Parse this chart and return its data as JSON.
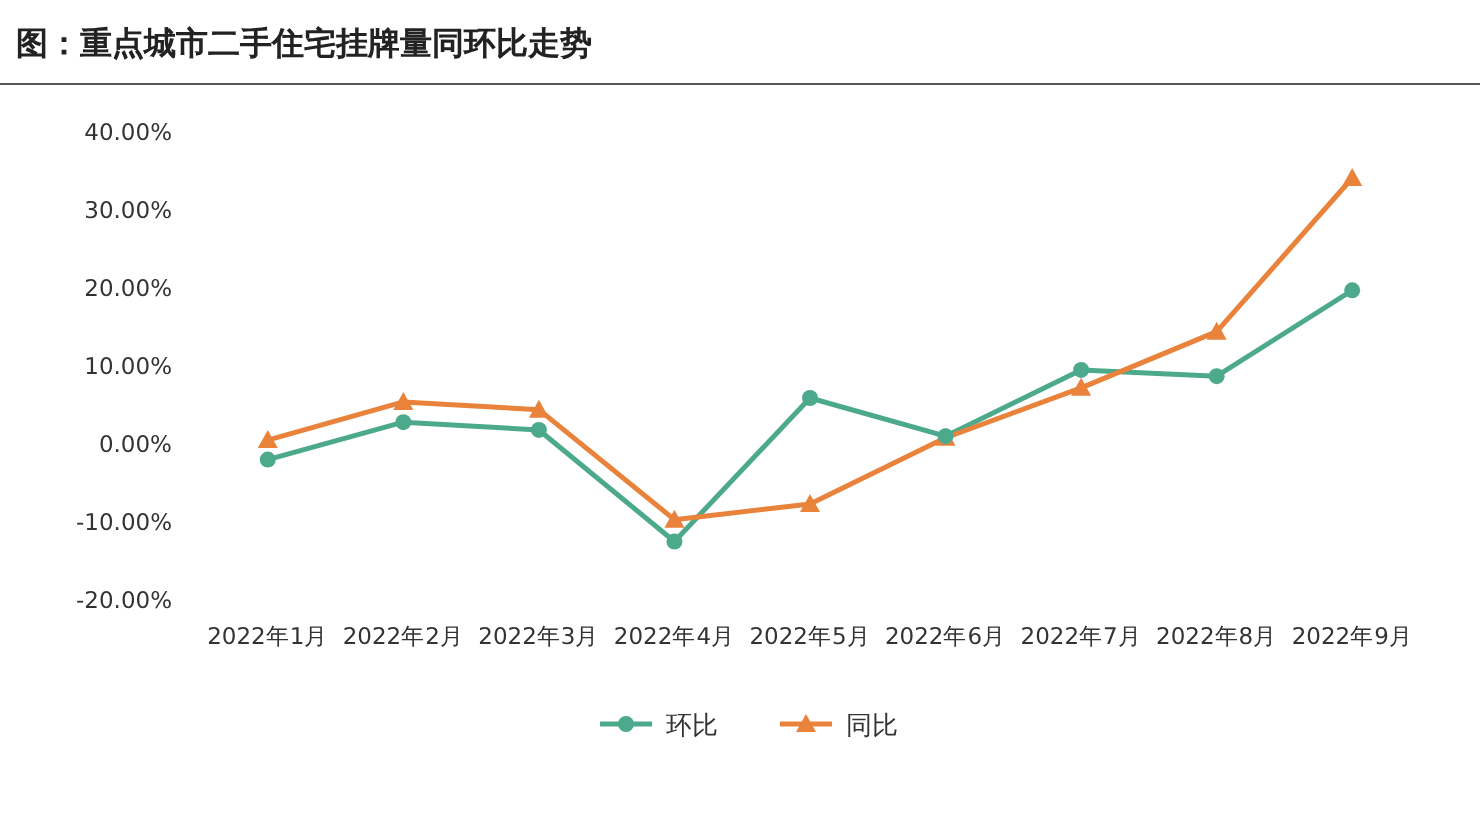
{
  "chart_data": {
    "type": "line",
    "title": "图：重点城市二手住宅挂牌量同环比走势",
    "categories": [
      "2022年1月",
      "2022年2月",
      "2022年3月",
      "2022年4月",
      "2022年5月",
      "2022年6月",
      "2022年7月",
      "2022年8月",
      "2022年9月"
    ],
    "series": [
      {
        "name": "环比",
        "color": "#4ca98c",
        "marker": "circle",
        "values": [
          -2.0,
          2.8,
          1.8,
          -12.5,
          5.9,
          1.0,
          9.5,
          8.7,
          19.7
        ]
      },
      {
        "name": "同比",
        "color": "#e9823a",
        "marker": "triangle",
        "values": [
          0.5,
          5.4,
          4.4,
          -9.7,
          -7.7,
          0.8,
          7.2,
          14.4,
          34.1
        ]
      }
    ],
    "ylim": [
      -20,
      40
    ],
    "yticks": [
      {
        "value": -20,
        "label": "-20.00%"
      },
      {
        "value": -10,
        "label": "-10.00%"
      },
      {
        "value": 0,
        "label": "0.00%"
      },
      {
        "value": 10,
        "label": "10.00%"
      },
      {
        "value": 20,
        "label": "20.00%"
      },
      {
        "value": 30,
        "label": "30.00%"
      },
      {
        "value": 40,
        "label": "40.00%"
      }
    ],
    "grid": false,
    "legend": "bottom"
  }
}
